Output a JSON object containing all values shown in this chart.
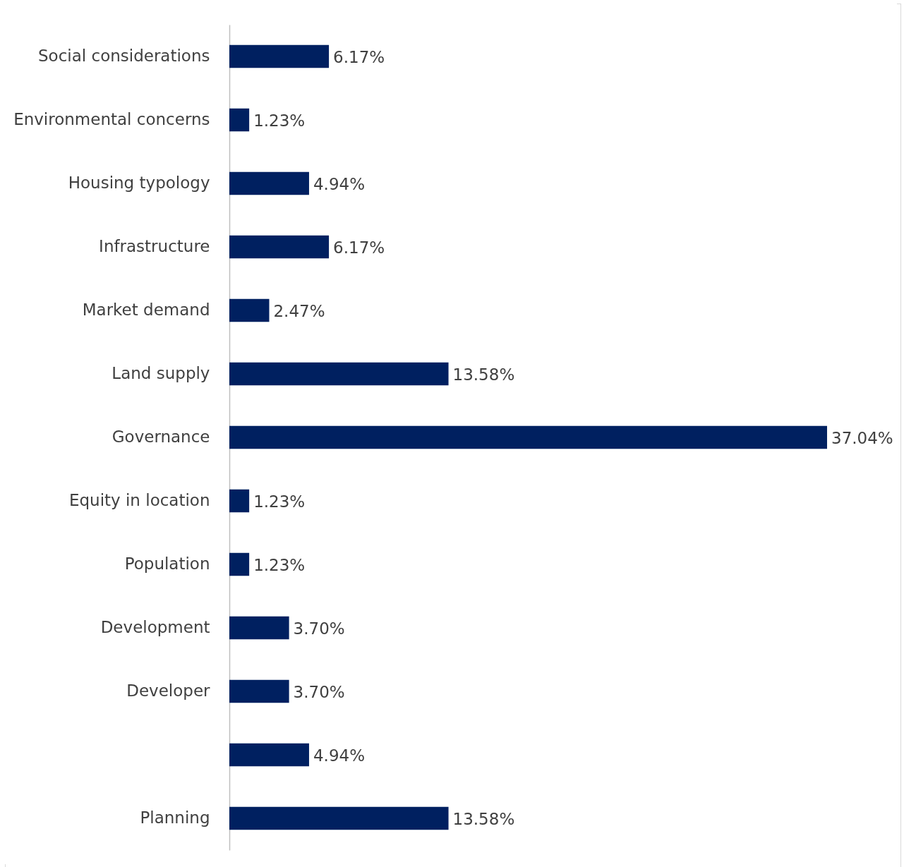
{
  "chart_data": {
    "type": "bar",
    "orientation": "horizontal",
    "tick_labels": "y",
    "color": "#002060",
    "categories": [
      "Social considerations",
      "Environmental concerns",
      "Housing typology",
      "Infrastructure",
      "Market demand",
      "Land supply",
      "Governance",
      "Equity in location",
      "Population",
      "Development",
      "Developer",
      null,
      "Planning"
    ],
    "values": [
      6.17,
      1.23,
      4.94,
      6.17,
      2.47,
      13.58,
      37.04,
      1.23,
      1.23,
      3.7,
      3.7,
      4.94,
      13.58
    ],
    "value_labels": [
      "6.17%",
      "1.23%",
      "4.94%",
      "6.17%",
      "2.47%",
      "13.58%",
      "37.04%",
      "1.23%",
      "1.23%",
      "3.70%",
      "3.70%",
      "4.94%",
      "13.58%"
    ]
  }
}
